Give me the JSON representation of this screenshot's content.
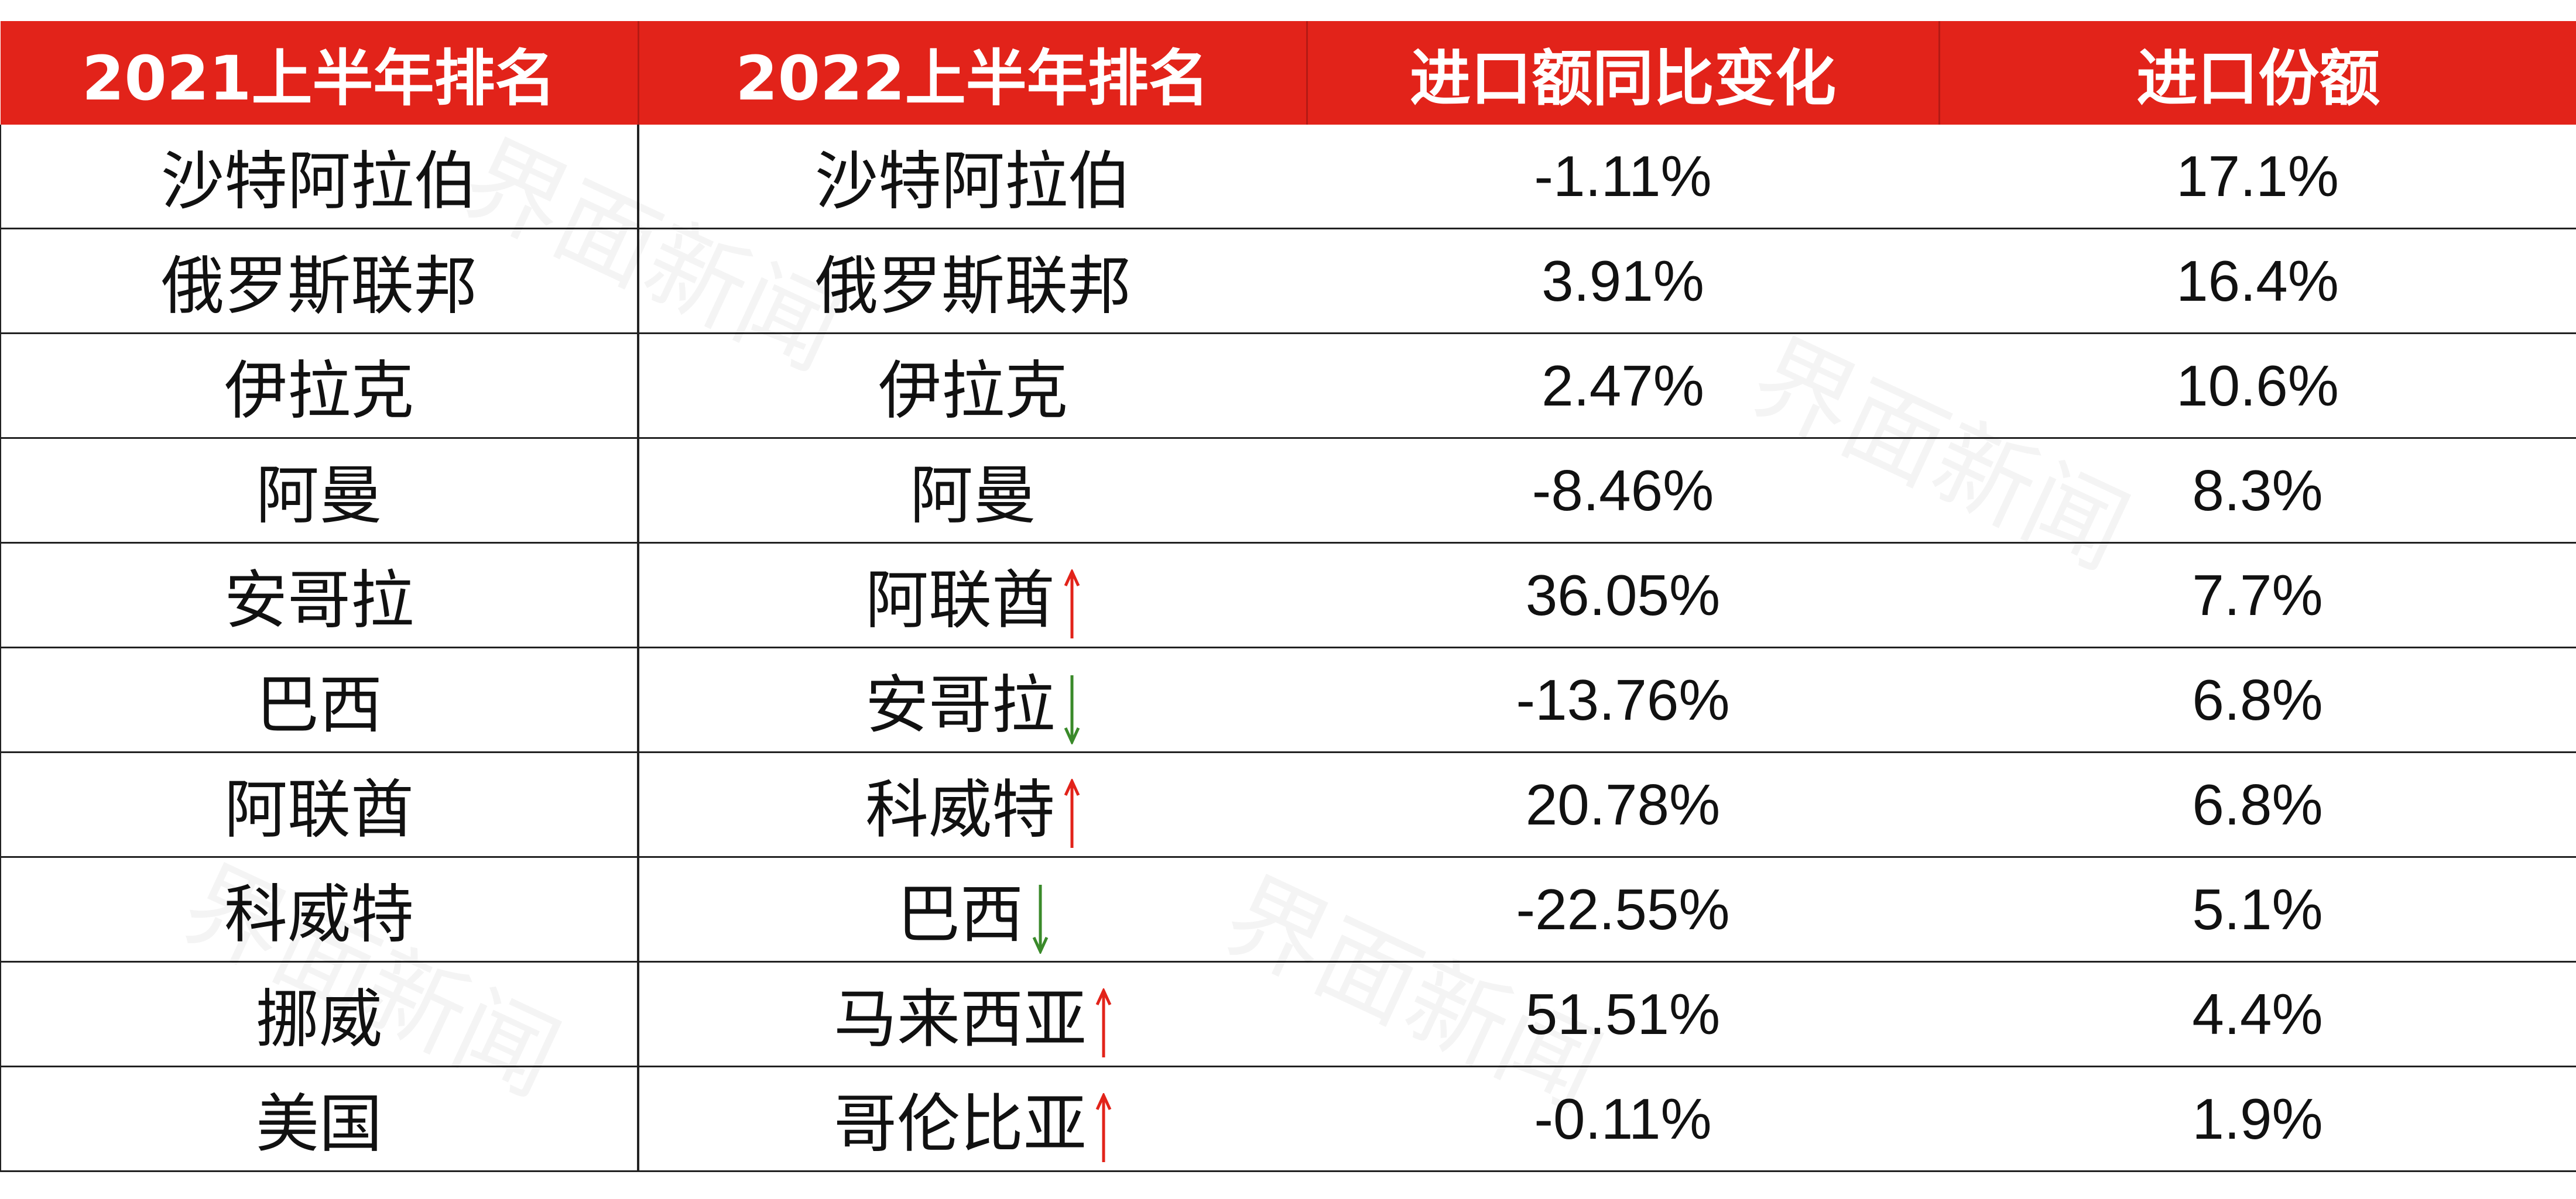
{
  "table": {
    "header": [
      "2021上半年排名",
      "2022上半年排名",
      "进口额同比变化",
      "进口份额"
    ],
    "rows": [
      [
        "沙特阿拉伯",
        "沙特阿拉伯",
        "-1.11%",
        "17.1%"
      ],
      [
        "俄罗斯联邦",
        "俄罗斯联邦",
        "3.91%",
        "16.4%"
      ],
      [
        "伊拉克",
        "伊拉克",
        "2.47%",
        "10.6%"
      ],
      [
        "阿曼",
        "阿曼",
        "-8.46%",
        "8.3%"
      ],
      [
        "安哥拉",
        "阿联酋",
        "36.05%",
        "7.7%"
      ],
      [
        "巴西",
        "安哥拉",
        "-13.76%",
        "6.8%"
      ],
      [
        "阿联酋",
        "科威特",
        "20.78%",
        "6.8%"
      ],
      [
        "科威特",
        "巴西",
        "-22.55%",
        "5.1%"
      ],
      [
        "挪威",
        "马来西亚",
        "51.51%",
        "4.4%"
      ],
      [
        "美国",
        "哥伦比亚",
        "-0.11%",
        "1.9%"
      ]
    ]
  },
  "watermark": "界面新闻"
}
